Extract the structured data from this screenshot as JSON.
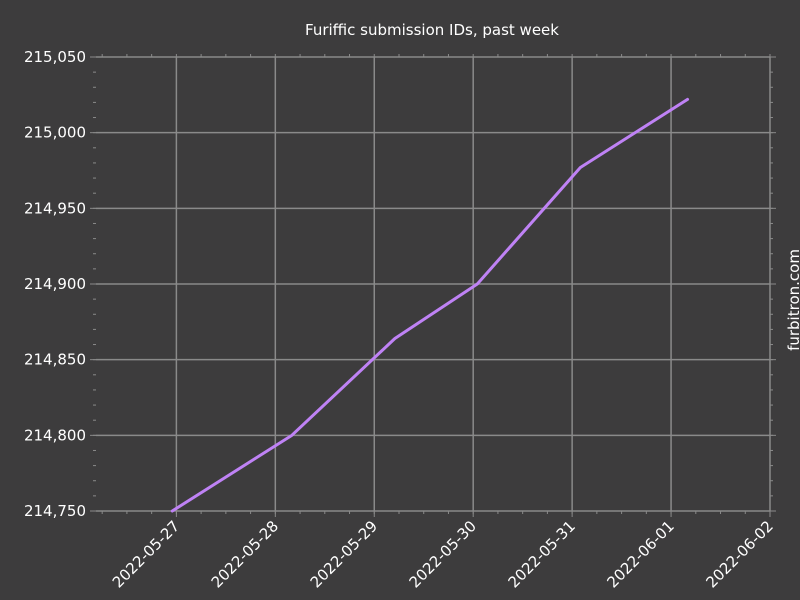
{
  "chart_data": {
    "type": "line",
    "title": "Furiffic submission IDs, past week",
    "xlabel": "",
    "ylabel": "",
    "watermark": "furbitron.com",
    "xlim": [
      "2022-05-26 T04:30",
      "2022-06-02"
    ],
    "ylim": [
      214750,
      215050
    ],
    "xticks": [
      "2022-05-27",
      "2022-05-28",
      "2022-05-29",
      "2022-05-30",
      "2022-05-31",
      "2022-06-01",
      "2022-06-02"
    ],
    "yticks": [
      "214,750",
      "214,800",
      "214,850",
      "214,900",
      "214,950",
      "215,000",
      "215,050"
    ],
    "grid": true,
    "series": [
      {
        "color": "#bf82f5",
        "points": [
          {
            "x": "2022-05-26 T23:00",
            "y": 214750
          },
          {
            "x": "2022-05-28 T04:00",
            "y": 214800
          },
          {
            "x": "2022-05-29 T05:00",
            "y": 214864
          },
          {
            "x": "2022-05-30 T01:00",
            "y": 214900
          },
          {
            "x": "2022-05-31 T02:00",
            "y": 214977
          },
          {
            "x": "2022-06-01 T04:00",
            "y": 215022
          }
        ]
      }
    ]
  },
  "colors": {
    "background": "#3d3c3d",
    "grid": "#8a8a8a",
    "line": "#bf82f5",
    "text": "#ffffff"
  }
}
